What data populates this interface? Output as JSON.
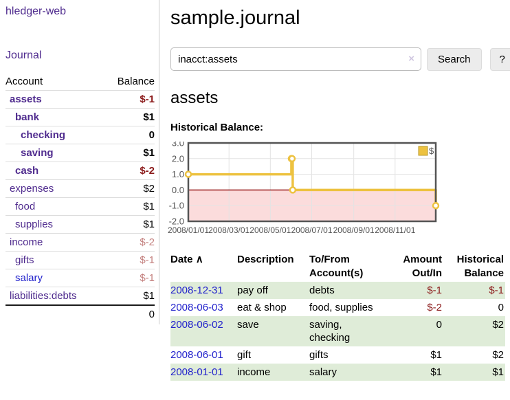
{
  "sidebar": {
    "brand": "hledger-web",
    "journal_label": "Journal",
    "accounts": {
      "header_account": "Account",
      "header_balance": "Balance",
      "rows": [
        {
          "name": "assets",
          "balance": "$-1",
          "indent": 1,
          "bold": true,
          "balance_style": "neg-strong"
        },
        {
          "name": "bank",
          "balance": "$1",
          "indent": 2,
          "bold": true,
          "balance_style": "normal"
        },
        {
          "name": "checking",
          "balance": "0",
          "indent": 3,
          "bold": true,
          "balance_style": "normal"
        },
        {
          "name": "saving",
          "balance": "$1",
          "indent": 3,
          "bold": true,
          "balance_style": "normal"
        },
        {
          "name": "cash",
          "balance": "$-2",
          "indent": 2,
          "bold": true,
          "balance_style": "neg-strong"
        },
        {
          "name": "expenses",
          "balance": "$2",
          "indent": 1,
          "bold": false,
          "balance_style": "normal"
        },
        {
          "name": "food",
          "balance": "$1",
          "indent": 2,
          "bold": false,
          "balance_style": "normal"
        },
        {
          "name": "supplies",
          "balance": "$1",
          "indent": 2,
          "bold": false,
          "balance_style": "normal"
        },
        {
          "name": "income",
          "balance": "$-2",
          "indent": 1,
          "bold": false,
          "balance_style": "neg-muted"
        },
        {
          "name": "gifts",
          "balance": "$-1",
          "indent": 2,
          "bold": false,
          "balance_style": "neg-muted"
        },
        {
          "name": "salary",
          "balance": "$-1",
          "indent": 2,
          "bold": false,
          "balance_style": "neg-muted",
          "link": "unvisited"
        },
        {
          "name": "liabilities:debts",
          "balance": "$1",
          "indent": 1,
          "bold": false,
          "balance_style": "normal"
        }
      ],
      "total": "0"
    }
  },
  "main": {
    "title": "sample.journal",
    "search": {
      "value": "inacct:assets",
      "clear_icon": "×",
      "button_label": "Search",
      "help_label": "?"
    },
    "account_heading": "assets",
    "chart_label": "Historical Balance:"
  },
  "chart_data": {
    "type": "line",
    "step": true,
    "title": "Historical Balance",
    "x_start": "2008-01-01",
    "x_end": "2008-12-31",
    "ylim": [
      -2.0,
      3.0
    ],
    "yticks": [
      {
        "v": 3,
        "label": "3.0"
      },
      {
        "v": 2,
        "label": "2.0"
      },
      {
        "v": 1,
        "label": "1.0"
      },
      {
        "v": 0,
        "label": "0.0"
      },
      {
        "v": -1,
        "label": "-1.0"
      },
      {
        "v": -2,
        "label": "-2.0"
      }
    ],
    "xticks": [
      {
        "date": "2008-01-01",
        "label": "2008/01/01"
      },
      {
        "date": "2008-03-01",
        "label": "2008/03/01"
      },
      {
        "date": "2008-05-01",
        "label": "2008/05/01"
      },
      {
        "date": "2008-07-01",
        "label": "2008/07/01"
      },
      {
        "date": "2008-09-01",
        "label": "2008/09/01"
      },
      {
        "date": "2008-11-01",
        "label": "2008/11/01"
      }
    ],
    "series": [
      {
        "name": "$",
        "color": "#EDC240",
        "points": [
          {
            "date": "2008-01-01",
            "value": 1
          },
          {
            "date": "2008-06-01",
            "value": 2
          },
          {
            "date": "2008-06-02",
            "value": 2
          },
          {
            "date": "2008-06-03",
            "value": 0
          },
          {
            "date": "2008-12-31",
            "value": -1
          }
        ]
      }
    ],
    "legend_position": "top-right",
    "grid": true,
    "negative_fill": "#fbdcdc",
    "zero_line_color": "#8b0000",
    "border_color": "#545454",
    "tick_text_color": "#545454"
  },
  "register": {
    "headers": {
      "date": "Date",
      "sort_icon": "∧",
      "description": "Description",
      "accounts_line1": "To/From",
      "accounts_line2": "Account(s)",
      "amount_line1": "Amount",
      "amount_line2": "Out/In",
      "balance_line1": "Historical",
      "balance_line2": "Balance"
    },
    "rows": [
      {
        "date": "2008-12-31",
        "description": "pay off",
        "accounts": "debts",
        "amount": "$-1",
        "balance": "$-1"
      },
      {
        "date": "2008-06-03",
        "description": "eat & shop",
        "accounts": "food, supplies",
        "amount": "$-2",
        "balance": "0"
      },
      {
        "date": "2008-06-02",
        "description": "save",
        "accounts": "saving, checking",
        "amount": "0",
        "balance": "$2"
      },
      {
        "date": "2008-06-01",
        "description": "gift",
        "accounts": "gifts",
        "amount": "$1",
        "balance": "$2"
      },
      {
        "date": "2008-01-01",
        "description": "income",
        "accounts": "salary",
        "amount": "$1",
        "balance": "$1"
      }
    ]
  }
}
